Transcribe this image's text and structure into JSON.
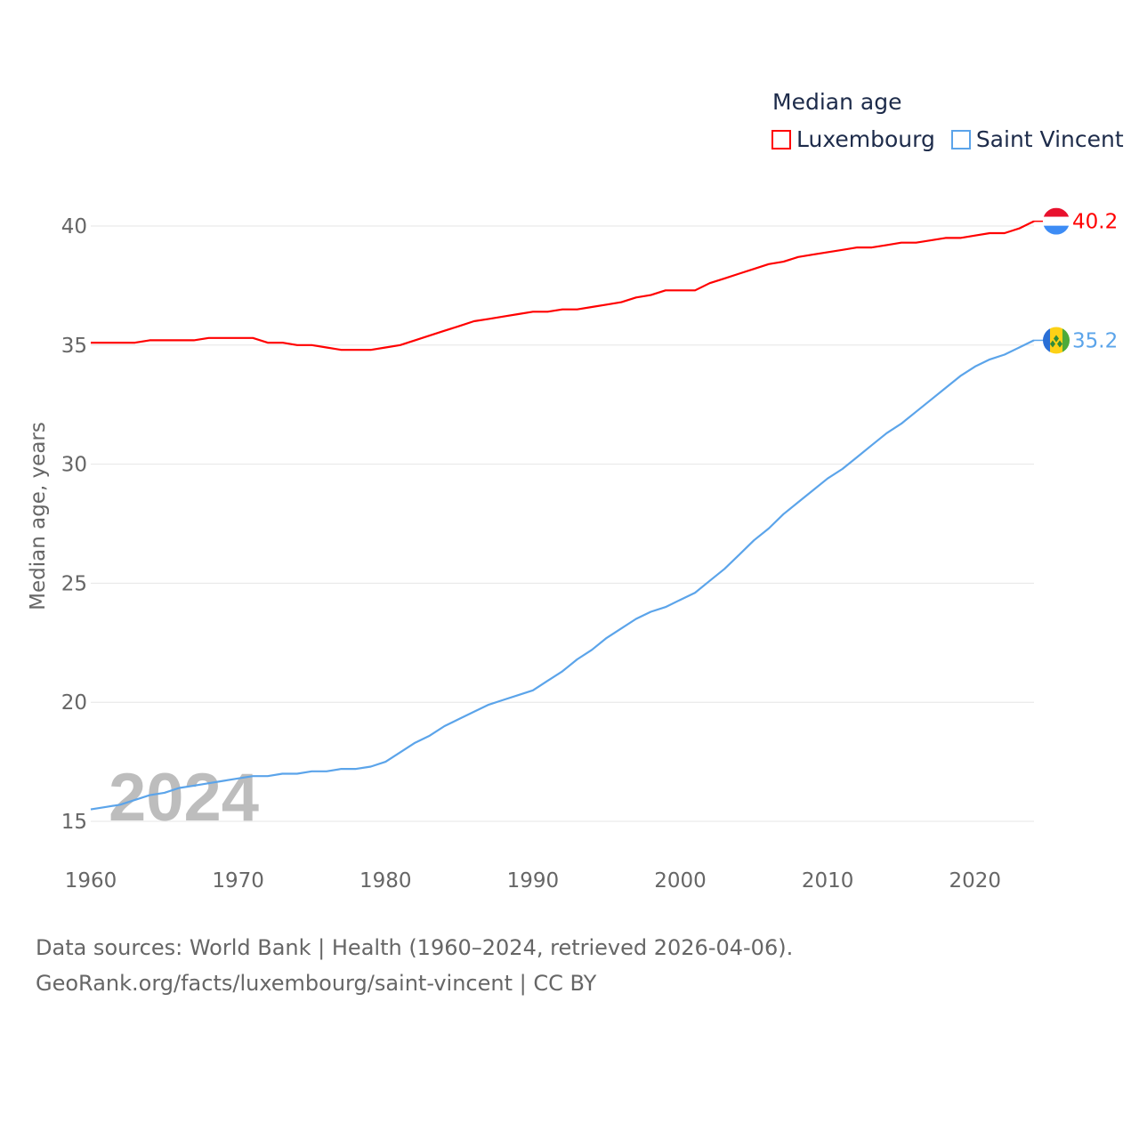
{
  "chart_data": {
    "type": "line",
    "title": "Median age",
    "ylabel": "Median age, years",
    "xlabel": "",
    "ylim": [
      15,
      40
    ],
    "xlim": [
      1960,
      2024
    ],
    "yticks": [
      15,
      20,
      25,
      30,
      35,
      40
    ],
    "xticks": [
      1960,
      1970,
      1980,
      1990,
      2000,
      2010,
      2020
    ],
    "grid": true,
    "legend_position": "top-right",
    "watermark_year": "2024",
    "x": [
      1960,
      1961,
      1962,
      1963,
      1964,
      1965,
      1966,
      1967,
      1968,
      1969,
      1970,
      1971,
      1972,
      1973,
      1974,
      1975,
      1976,
      1977,
      1978,
      1979,
      1980,
      1981,
      1982,
      1983,
      1984,
      1985,
      1986,
      1987,
      1988,
      1989,
      1990,
      1991,
      1992,
      1993,
      1994,
      1995,
      1996,
      1997,
      1998,
      1999,
      2000,
      2001,
      2002,
      2003,
      2004,
      2005,
      2006,
      2007,
      2008,
      2009,
      2010,
      2011,
      2012,
      2013,
      2014,
      2015,
      2016,
      2017,
      2018,
      2019,
      2020,
      2021,
      2022,
      2023,
      2024
    ],
    "series": [
      {
        "name": "Luxembourg",
        "color": "#ff0000",
        "end_label": "40.2",
        "values": [
          35.1,
          35.1,
          35.1,
          35.1,
          35.2,
          35.2,
          35.2,
          35.2,
          35.3,
          35.3,
          35.3,
          35.3,
          35.1,
          35.1,
          35.0,
          35.0,
          34.9,
          34.8,
          34.8,
          34.8,
          34.9,
          35.0,
          35.2,
          35.4,
          35.6,
          35.8,
          36.0,
          36.1,
          36.2,
          36.3,
          36.4,
          36.4,
          36.5,
          36.5,
          36.6,
          36.7,
          36.8,
          37.0,
          37.1,
          37.3,
          37.3,
          37.3,
          37.6,
          37.8,
          38.0,
          38.2,
          38.4,
          38.5,
          38.7,
          38.8,
          38.9,
          39.0,
          39.1,
          39.1,
          39.2,
          39.3,
          39.3,
          39.4,
          39.5,
          39.5,
          39.6,
          39.7,
          39.7,
          39.9,
          40.2
        ]
      },
      {
        "name": "Saint Vincent",
        "color": "#5ba4ea",
        "end_label": "35.2",
        "values": [
          15.5,
          15.6,
          15.7,
          15.9,
          16.1,
          16.2,
          16.4,
          16.5,
          16.6,
          16.7,
          16.8,
          16.9,
          16.9,
          17.0,
          17.0,
          17.1,
          17.1,
          17.2,
          17.2,
          17.3,
          17.5,
          17.9,
          18.3,
          18.6,
          19.0,
          19.3,
          19.6,
          19.9,
          20.1,
          20.3,
          20.5,
          20.9,
          21.3,
          21.8,
          22.2,
          22.7,
          23.1,
          23.5,
          23.8,
          24.0,
          24.3,
          24.6,
          25.1,
          25.6,
          26.2,
          26.8,
          27.3,
          27.9,
          28.4,
          28.9,
          29.4,
          29.8,
          30.3,
          30.8,
          31.3,
          31.7,
          32.2,
          32.7,
          33.2,
          33.7,
          34.1,
          34.4,
          34.6,
          34.9,
          35.2
        ]
      }
    ]
  },
  "footer": {
    "line1": "Data sources: World Bank | Health (1960–2024, retrieved 2026-04-06).",
    "line2": "GeoRank.org/facts/luxembourg/saint-vincent | CC BY"
  }
}
